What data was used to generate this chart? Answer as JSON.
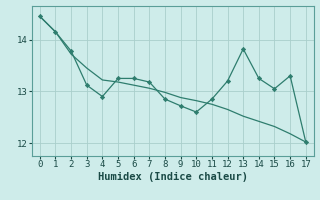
{
  "xlabel": "Humidex (Indice chaleur)",
  "ylabel": "",
  "background_color": "#ceecea",
  "line_color": "#2e7d6e",
  "x_values": [
    0,
    1,
    2,
    3,
    4,
    5,
    6,
    7,
    8,
    9,
    10,
    11,
    12,
    13,
    14,
    15,
    16,
    17
  ],
  "y_main": [
    14.45,
    14.15,
    13.78,
    13.12,
    12.9,
    13.25,
    13.25,
    13.18,
    12.85,
    12.72,
    12.6,
    12.85,
    13.2,
    13.82,
    13.25,
    13.05,
    13.3,
    12.02
  ],
  "y_trend": [
    14.45,
    14.15,
    13.72,
    13.45,
    13.22,
    13.18,
    13.12,
    13.06,
    12.98,
    12.88,
    12.82,
    12.75,
    12.65,
    12.52,
    12.42,
    12.32,
    12.18,
    12.02
  ],
  "ylim": [
    11.75,
    14.65
  ],
  "yticks": [
    12,
    13,
    14
  ],
  "xticks": [
    0,
    1,
    2,
    3,
    4,
    5,
    6,
    7,
    8,
    9,
    10,
    11,
    12,
    13,
    14,
    15,
    16,
    17
  ],
  "grid_color": "#aacfcc",
  "tick_fontsize": 6.5,
  "label_fontsize": 7.5,
  "spine_color": "#5a9e98"
}
